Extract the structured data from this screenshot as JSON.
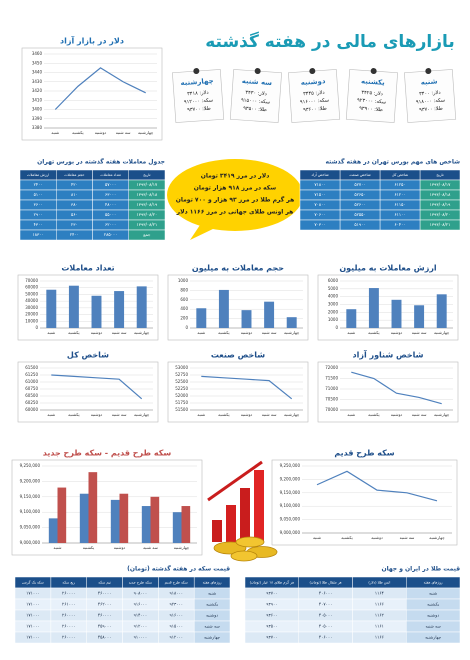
{
  "title": "بازارهای مالی در هفته گذشته",
  "notes": [
    {
      "day": "شنبه",
      "lines": [
        "دلار: ۳۴۰۰",
        "سکه: ۹۱۸۰۰۰",
        "طلا: ۹۳۷۰۰"
      ]
    },
    {
      "day": "یکشنبه",
      "lines": [
        "دلار: ۳۴۲۵",
        "سکه: ۹۲۳۰۰۰",
        "طلا: ۹۳۹۰۰"
      ]
    },
    {
      "day": "دوشنبه",
      "lines": [
        "دلار: ۳۴۴۵",
        "سکه: ۹۱۶۰۰۰",
        "طلا: ۹۳۶۰۰"
      ]
    },
    {
      "day": "سه شنبه",
      "lines": [
        "دلار: ۳۴۳۰",
        "سکه: ۹۱۵۰۰۰",
        "طلا: ۹۳۵۰۰"
      ]
    },
    {
      "day": "چهارشنبه",
      "lines": [
        "دلار: ۳۴۱۸",
        "سکه: ۹۱۲۰۰۰",
        "طلا: ۹۳۷۰۰"
      ]
    }
  ],
  "highlights": [
    "دلار در مرز ۳۴۱۹ تومان",
    "سکه در مرز ۹۱۸ هزار تومان",
    "هر گرم طلا در مرز ۹۳ هزار و ۷۰۰ تومان",
    "هر اونس طلای جهانی در مرز ۱۱۶۶ دلار"
  ],
  "tables": [
    {
      "title": "جدول معاملات هفته گذشته در بورس تهران",
      "headers": [
        "تاریخ",
        "تعداد معاملات",
        "حجم معاملات",
        "ارزش معاملات"
      ],
      "rows": [
        [
          "۱۳۹۳/۰۸/۱۷",
          "۵۷۰۰۰",
          "۴۲۰",
          "۲۴۰۰"
        ],
        [
          "۱۳۹۳/۰۸/۱۸",
          "۶۳۰۰۰",
          "۸۱۰",
          "۵۱۰۰"
        ],
        [
          "۱۳۹۳/۰۸/۱۹",
          "۴۸۰۰۰",
          "۳۸۰",
          "۳۶۰۰"
        ],
        [
          "۱۳۹۳/۰۸/۲۰",
          "۵۵۰۰۰",
          "۵۶۰",
          "۲۹۰۰"
        ],
        [
          "۱۳۹۳/۰۸/۲۱",
          "۶۲۰۰۰",
          "۲۳۰",
          "۴۳۰۰"
        ],
        [
          "جمع",
          "۲۸۵۰۰۰",
          "۲۴۰۰",
          "۱۸۳۰۰"
        ]
      ]
    },
    {
      "title": "شاخص های مهم بورس تهران در هفته گذشته",
      "headers": [
        "تاریخ",
        "شاخص کل",
        "شاخص صنعت",
        "شاخص آزاد"
      ],
      "rows": [
        [
          "۱۳۹۳/۰۸/۱۷",
          "۶۱۲۵۰",
          "۵۲۷۰۰",
          "۷۱۸۰۰"
        ],
        [
          "۱۳۹۳/۰۸/۱۸",
          "۶۱۲۰۰",
          "۵۲۶۵۰",
          "۷۱۵۰۰"
        ],
        [
          "۱۳۹۳/۰۸/۱۹",
          "۶۱۱۵۰",
          "۵۲۶۰۰",
          "۷۰۸۰۰"
        ],
        [
          "۱۳۹۳/۰۸/۲۰",
          "۶۱۱۰۰",
          "۵۲۵۵۰",
          "۷۰۶۰۰"
        ],
        [
          "۱۳۹۳/۰۸/۲۱",
          "۶۰۴۰۰",
          "۵۱۹۰۰",
          "۷۰۳۰۰"
        ]
      ]
    },
    {
      "title": "قیمت سکه در هفته گذشته (تومان)",
      "headers": [
        "روزهای هفته",
        "سکه طرح قدیم",
        "سکه طرح جدید",
        "نیم سکه",
        "ربع سکه",
        "سکه یک گرمی"
      ],
      "rows": [
        [
          "شنبه",
          "۹۱۸۰۰۰",
          "۹۰۸۰۰۰",
          "۴۶۰۰۰۰",
          "۲۶۰۰۰۰",
          "۱۷۱۰۰۰"
        ],
        [
          "یکشنبه",
          "۹۲۳۰۰۰",
          "۹۱۶۰۰۰",
          "۴۶۲۰۰۰",
          "۲۶۱۰۰۰",
          "۱۷۱۰۰۰"
        ],
        [
          "دوشنبه",
          "۹۱۶۰۰۰",
          "۹۱۴۰۰۰",
          "۴۶۰۰۰۰",
          "۲۶۰۰۰۰",
          "۱۷۱۰۰۰"
        ],
        [
          "سه شنبه",
          "۹۱۵۰۰۰",
          "۹۱۲۰۰۰",
          "۴۵۹۰۰۰",
          "۲۶۰۰۰۰",
          "۱۷۱۰۰۰"
        ],
        [
          "چهارشنبه",
          "۹۱۲۰۰۰",
          "۹۱۰۰۰۰",
          "۴۵۸۰۰۰",
          "۲۶۰۰۰۰",
          "۱۷۱۰۰۰"
        ]
      ]
    },
    {
      "title": "قیمت طلا در ایران و جهان",
      "headers": [
        "روزهای هفته",
        "انس طلا (دلار)",
        "هر مثقال طلا (تومان)",
        "هر گرم طلای ۱۸ عیار (تومان)"
      ],
      "rows": [
        [
          "شنبه",
          "۱۱۶۴",
          "۴۰۶۰۰۰",
          "۹۳۷۰۰"
        ],
        [
          "یکشنبه",
          "۱۱۶۶",
          "۴۰۷۰۰۰",
          "۹۳۹۰۰"
        ],
        [
          "دوشنبه",
          "۱۱۶۲",
          "۴۰۵۰۰۰",
          "۹۳۶۰۰"
        ],
        [
          "سه شنبه",
          "۱۱۶۱",
          "۴۰۵۰۰۰",
          "۹۳۵۰۰"
        ],
        [
          "چهارشنبه",
          "۱۱۶۶",
          "۴۰۶۰۰۰",
          "۹۳۷۰۰"
        ]
      ]
    }
  ],
  "chart_data": [
    {
      "type": "line",
      "title": "دلار در بازار آزاد",
      "color": "#4f81bd",
      "categories": [
        "شنبه",
        "یکشنبه",
        "دوشنبه",
        "سه شنبه",
        "چهارشنبه"
      ],
      "values": [
        3400,
        3425,
        3445,
        3430,
        3418
      ],
      "ylim": [
        3380,
        3460
      ],
      "yticks": [
        3380,
        3390,
        3400,
        3410,
        3420,
        3430,
        3440,
        3450,
        3460
      ],
      "grid": true
    },
    {
      "type": "bar",
      "title": "ارزش معاملات به میلیون",
      "color": "#4f81bd",
      "categories": [
        "شنبه",
        "یکشنبه",
        "دوشنبه",
        "سه شنبه",
        "چهارشنبه"
      ],
      "values": [
        2400,
        5100,
        3600,
        2900,
        4300
      ],
      "ylim": [
        0,
        6000
      ],
      "yticks": [
        0,
        1000,
        2000,
        3000,
        4000,
        5000,
        6000
      ],
      "grid": true
    },
    {
      "type": "bar",
      "title": "حجم معاملات به میلیون",
      "color": "#4f81bd",
      "categories": [
        "شنبه",
        "یکشنبه",
        "دوشنبه",
        "سه شنبه",
        "چهارشنبه"
      ],
      "values": [
        420,
        810,
        380,
        560,
        230
      ],
      "ylim": [
        0,
        1000
      ],
      "yticks": [
        0,
        200,
        400,
        600,
        800,
        1000
      ],
      "grid": true
    },
    {
      "type": "bar",
      "title": "تعداد معاملات",
      "color": "#4f81bd",
      "categories": [
        "شنبه",
        "یکشنبه",
        "دوشنبه",
        "سه شنبه",
        "چهارشنبه"
      ],
      "values": [
        57000,
        63000,
        48000,
        55000,
        62000
      ],
      "ylim": [
        0,
        70000
      ],
      "yticks": [
        0,
        10000,
        20000,
        30000,
        40000,
        50000,
        60000,
        70000
      ],
      "grid": true
    },
    {
      "type": "line",
      "title": "شاخص کل",
      "color": "#4f81bd",
      "categories": [
        "شنبه",
        "یکشنبه",
        "دوشنبه",
        "سه شنبه",
        "چهارشنبه"
      ],
      "values": [
        61250,
        61200,
        61150,
        61100,
        60400
      ],
      "ylim": [
        60000,
        61500
      ],
      "yticks": [
        60000,
        60250,
        60500,
        60750,
        61000,
        61250,
        61500
      ],
      "grid": true
    },
    {
      "type": "line",
      "title": "شاخص صنعت",
      "color": "#4f81bd",
      "categories": [
        "شنبه",
        "یکشنبه",
        "دوشنبه",
        "سه شنبه",
        "چهارشنبه"
      ],
      "values": [
        52700,
        52650,
        52600,
        52550,
        51900
      ],
      "ylim": [
        51500,
        53000
      ],
      "yticks": [
        51500,
        51750,
        52000,
        52250,
        52500,
        52750,
        53000
      ],
      "grid": true
    },
    {
      "type": "line",
      "title": "شاخص شناور آزاد",
      "color": "#4f81bd",
      "categories": [
        "شنبه",
        "یکشنبه",
        "دوشنبه",
        "سه شنبه",
        "چهارشنبه"
      ],
      "values": [
        71800,
        71500,
        70800,
        70600,
        70300
      ],
      "ylim": [
        70000,
        72000
      ],
      "yticks": [
        70000,
        70500,
        71000,
        71500,
        72000
      ],
      "grid": true
    },
    {
      "type": "groupedbar",
      "title": "سکه طرح قدیم - سکه طرح جدید",
      "categories": [
        "شنبه",
        "یکشنبه",
        "دوشنبه",
        "سه شنبه",
        "چهارشنبه"
      ],
      "series": [
        {
          "color": "#4f81bd",
          "values": [
            9080000,
            9160000,
            9140000,
            9120000,
            9100000
          ]
        },
        {
          "color": "#c0504d",
          "values": [
            9180000,
            9230000,
            9160000,
            9150000,
            9120000
          ]
        }
      ],
      "ylim": [
        9000000,
        9250000
      ],
      "yticks": [
        {
          "value": 9000000,
          "label": "9,000,000"
        },
        {
          "value": 9050000,
          "label": "9,050,000"
        },
        {
          "value": 9100000,
          "label": "9,100,000"
        },
        {
          "value": 9150000,
          "label": "9,150,000"
        },
        {
          "value": 9200000,
          "label": "9,200,000"
        },
        {
          "value": 9250000,
          "label": "9,250,000"
        }
      ],
      "grid": true
    },
    {
      "type": "line",
      "title": "سکه طرح قدیم",
      "color": "#4f81bd",
      "categories": [
        "شنبه",
        "یکشنبه",
        "دوشنبه",
        "سه شنبه",
        "چهارشنبه"
      ],
      "values": [
        9180000,
        9230000,
        9160000,
        9150000,
        9120000
      ],
      "ylim": [
        9000000,
        9250000
      ],
      "yticks": [
        {
          "value": 9000000,
          "label": "9,000,000"
        },
        {
          "value": 9050000,
          "label": "9,050,000"
        },
        {
          "value": 9100000,
          "label": "9,100,000"
        },
        {
          "value": 9150000,
          "label": "9,150,000"
        },
        {
          "value": 9200000,
          "label": "9,200,000"
        },
        {
          "value": 9250000,
          "label": "9,250,000"
        }
      ],
      "grid": true
    }
  ]
}
